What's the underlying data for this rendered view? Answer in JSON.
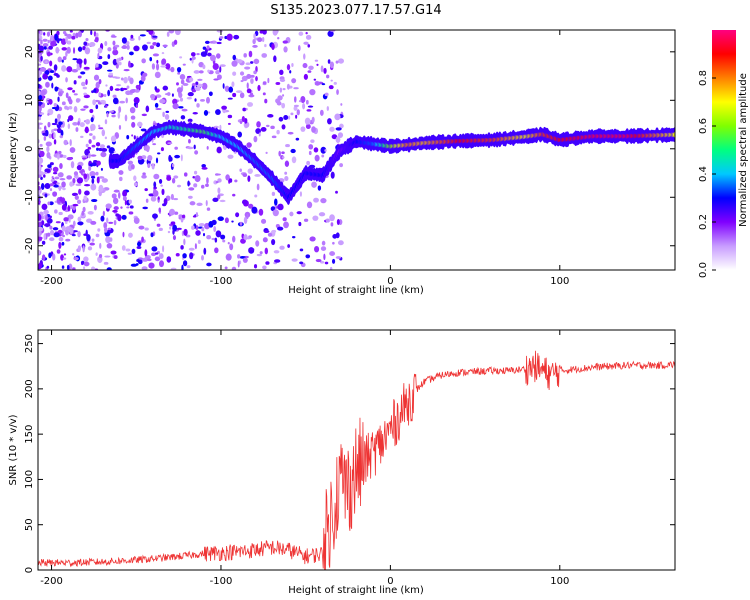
{
  "title": "S135.2023.077.17.57.G14",
  "chart_data": [
    {
      "type": "heatmap",
      "xlabel": "Height of straight line (km)",
      "ylabel": "Frequency (Hz)",
      "xlim": [
        -208,
        168
      ],
      "ylim": [
        -25,
        24.5
      ],
      "xticks": [
        -200,
        -100,
        0,
        100
      ],
      "yticks": [
        -20,
        -10,
        0,
        10,
        20
      ],
      "colorbar": {
        "label": "Normalized spectral amplitude",
        "range": [
          0,
          1
        ],
        "ticks": [
          0.0,
          0.2,
          0.4,
          0.6,
          0.8
        ],
        "colors": [
          "#ffffff",
          "#c89cff",
          "#8000ff",
          "#0000ff",
          "#00c8ff",
          "#00ff80",
          "#80ff00",
          "#ffff00",
          "#ff8000",
          "#ff0000",
          "#ff0080"
        ]
      },
      "ridge": {
        "x": [
          -160,
          -150,
          -140,
          -130,
          -120,
          -110,
          -100,
          -90,
          -80,
          -70,
          -60,
          -50,
          -40,
          -30,
          -20,
          -10,
          0,
          10,
          20,
          40,
          60,
          80,
          90,
          100,
          120,
          140,
          168
        ],
        "freq": [
          -2.5,
          0.5,
          3.5,
          4.5,
          4.0,
          3.5,
          2.5,
          0.5,
          -2.5,
          -6.0,
          -10.0,
          -5.0,
          -5.5,
          -0.5,
          1.5,
          1.0,
          0.5,
          0.8,
          1.2,
          1.6,
          1.8,
          2.5,
          3.0,
          1.8,
          2.6,
          2.6,
          2.9
        ],
        "amplitude": [
          0.3,
          0.35,
          0.4,
          0.45,
          0.5,
          0.55,
          0.4,
          0.4,
          0.35,
          0.35,
          0.3,
          0.3,
          0.3,
          0.2,
          0.3,
          0.35,
          0.6,
          0.8,
          0.75,
          0.9,
          0.85,
          0.7,
          0.85,
          0.9,
          0.95,
          0.95,
          0.7
        ]
      }
    },
    {
      "type": "line",
      "xlabel": "Height of straight line (km)",
      "ylabel": "SNR (10 * v/v)",
      "xlim": [
        -208,
        168
      ],
      "ylim": [
        0,
        265
      ],
      "xticks": [
        -200,
        -100,
        0,
        100
      ],
      "yticks": [
        0,
        50,
        100,
        150,
        200,
        250
      ],
      "series": [
        {
          "color": "#ee3333",
          "x": [
            -208,
            -190,
            -170,
            -150,
            -130,
            -110,
            -90,
            -80,
            -70,
            -60,
            -50,
            -40,
            -35,
            -30,
            -25,
            -20,
            -15,
            -10,
            -5,
            0,
            5,
            10,
            15,
            20,
            30,
            40,
            50,
            60,
            70,
            80,
            85,
            90,
            95,
            100,
            110,
            120,
            130,
            140,
            150,
            160,
            168
          ],
          "values": [
            8,
            8,
            9,
            11,
            14,
            18,
            20,
            22,
            25,
            22,
            15,
            18,
            60,
            100,
            90,
            110,
            120,
            130,
            140,
            155,
            170,
            185,
            198,
            208,
            215,
            218,
            219,
            220,
            220,
            222,
            225,
            220,
            215,
            220,
            222,
            224,
            225,
            226,
            226,
            226,
            227
          ]
        }
      ]
    }
  ]
}
